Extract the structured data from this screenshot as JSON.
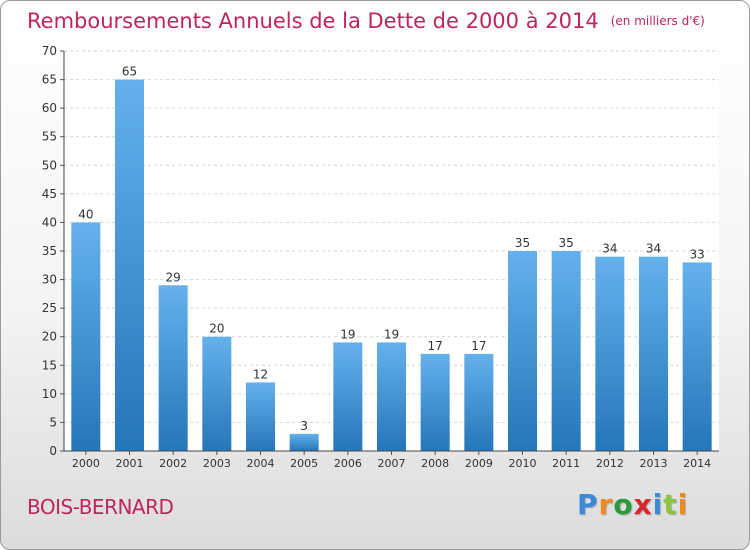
{
  "header": {
    "title": "Remboursements Annuels de la Dette de 2000 à 2014",
    "unit": "(en milliers d'€)"
  },
  "location": "BOIS-BERNARD",
  "brand": {
    "logo_text": "Proxiti"
  },
  "colors": {
    "accent": "#c0245f",
    "bar_top": "#64b1ec",
    "bar_bottom": "#2576b9"
  },
  "chart_data": {
    "type": "bar",
    "title": "Remboursements Annuels de la Dette de 2000 à 2014",
    "categories": [
      "2000",
      "2001",
      "2002",
      "2003",
      "2004",
      "2005",
      "2006",
      "2007",
      "2008",
      "2009",
      "2010",
      "2011",
      "2012",
      "2013",
      "2014"
    ],
    "values": [
      40,
      65,
      29,
      20,
      12,
      3,
      19,
      19,
      17,
      17,
      35,
      35,
      34,
      34,
      33
    ],
    "ylim": [
      0,
      70
    ],
    "yticks": [
      0,
      5,
      10,
      15,
      20,
      25,
      30,
      35,
      40,
      45,
      50,
      55,
      60,
      65,
      70
    ],
    "grid": true,
    "data_labels": true,
    "xlabel": "",
    "ylabel": ""
  }
}
